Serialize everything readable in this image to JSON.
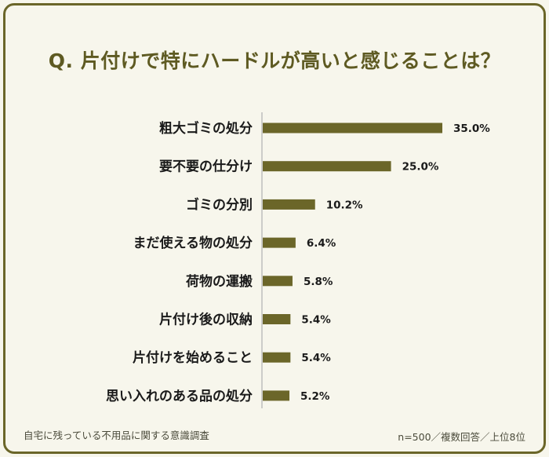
{
  "title": "Q. 片付けで特にハードルが高いと感じることは？",
  "footer": {
    "source": "自宅に残っている不用品に関する意識調査",
    "note": "n=500／複数回答／上位8位"
  },
  "colors": {
    "bar": "#6b6629",
    "axis": "#bdbdbd",
    "text": "#1a1a1a",
    "title": "#5e5a22",
    "border": "#6b6629"
  },
  "chart_data": {
    "type": "bar",
    "orientation": "horizontal",
    "categories": [
      "粗大ゴミの処分",
      "要不要の仕分け",
      "ゴミの分別",
      "まだ使える物の処分",
      "荷物の運搬",
      "片付け後の収納",
      "片付けを始めること",
      "思い入れのある品の処分"
    ],
    "values": [
      35.0,
      25.0,
      10.2,
      6.4,
      5.8,
      5.4,
      5.4,
      5.2
    ],
    "value_labels": [
      "35.0%",
      "25.0%",
      "10.2%",
      "6.4%",
      "5.8%",
      "5.4%",
      "5.4%",
      "5.2%"
    ],
    "unit": "%",
    "xlim": [
      0,
      35.0
    ]
  }
}
